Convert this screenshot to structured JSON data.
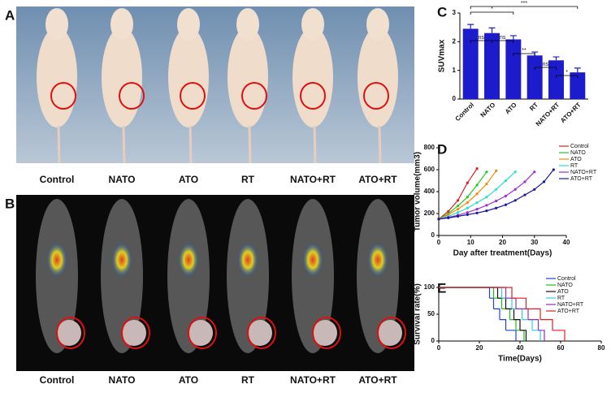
{
  "figure": {
    "panel_labels": [
      "A",
      "B",
      "C",
      "D",
      "E"
    ],
    "groups": [
      "Control",
      "NATO",
      "ATO",
      "RT",
      "NATO+RT",
      "ATO+RT"
    ]
  },
  "chart_data": [
    {
      "type": "bar",
      "ylabel": "SUVmax",
      "categories": [
        "Control",
        "NATO",
        "ATO",
        "RT",
        "NATO+RT",
        "ATO+RT"
      ],
      "values": [
        2.45,
        2.3,
        2.08,
        1.52,
        1.35,
        0.93
      ],
      "errors": [
        0.15,
        0.18,
        0.13,
        0.12,
        0.12,
        0.15
      ],
      "color": "#1c1ccc",
      "annotations": [
        "***",
        "*",
        "ns",
        "ns",
        "**",
        "ns",
        "*"
      ],
      "ylim": [
        0,
        3
      ],
      "yticks": [
        0,
        1,
        2,
        3
      ]
    },
    {
      "type": "line",
      "ylabel": "Tumor volume(mm3)",
      "xlabel": "Day after treatment(Days)",
      "series": [
        {
          "name": "Control",
          "color": "#e02020",
          "x": [
            0,
            3,
            6,
            9,
            12
          ],
          "values": [
            150,
            220,
            320,
            480,
            610
          ]
        },
        {
          "name": "NATO",
          "color": "#22cc22",
          "x": [
            0,
            3,
            6,
            9,
            12,
            15
          ],
          "values": [
            150,
            200,
            270,
            350,
            460,
            580
          ]
        },
        {
          "name": "ATO",
          "color": "#f08c10",
          "x": [
            0,
            3,
            6,
            9,
            12,
            15,
            18
          ],
          "values": [
            150,
            190,
            240,
            300,
            380,
            470,
            590
          ]
        },
        {
          "name": "RT",
          "color": "#30dcd0",
          "x": [
            0,
            3,
            6,
            9,
            12,
            15,
            18,
            21,
            24
          ],
          "values": [
            150,
            175,
            210,
            250,
            300,
            350,
            420,
            500,
            580
          ]
        },
        {
          "name": "NATO+RT",
          "color": "#a030d0",
          "x": [
            0,
            3,
            6,
            9,
            12,
            15,
            18,
            21,
            24,
            27,
            30
          ],
          "values": [
            150,
            165,
            185,
            210,
            240,
            275,
            315,
            360,
            420,
            490,
            580
          ]
        },
        {
          "name": "ATO+RT",
          "color": "#1a1a9a",
          "x": [
            0,
            3,
            6,
            9,
            12,
            15,
            18,
            21,
            24,
            27,
            30,
            33,
            36
          ],
          "values": [
            150,
            160,
            175,
            190,
            205,
            225,
            250,
            280,
            320,
            370,
            420,
            490,
            600
          ]
        }
      ],
      "xlim": [
        0,
        40
      ],
      "xticks": [
        0,
        10,
        20,
        30,
        40
      ],
      "ylim": [
        0,
        800
      ],
      "yticks": [
        0,
        200,
        400,
        600,
        800
      ]
    },
    {
      "type": "step",
      "ylabel": "Survival rate(%)",
      "xlabel": "Time(Days)",
      "series": [
        {
          "name": "Control",
          "color": "#2040e0",
          "x": [
            0,
            25,
            27,
            30,
            33,
            38
          ],
          "values": [
            100,
            80,
            60,
            40,
            20,
            0
          ]
        },
        {
          "name": "NATO",
          "color": "#22bb22",
          "x": [
            0,
            27,
            31,
            35,
            38,
            42
          ],
          "values": [
            100,
            80,
            60,
            40,
            20,
            0
          ]
        },
        {
          "name": "ATO",
          "color": "#111111",
          "x": [
            0,
            29,
            33,
            37,
            40,
            43
          ],
          "values": [
            100,
            80,
            60,
            40,
            20,
            0
          ]
        },
        {
          "name": "RT",
          "color": "#30d0e0",
          "x": [
            0,
            31,
            36,
            41,
            46,
            50
          ],
          "values": [
            100,
            80,
            60,
            40,
            20,
            0
          ]
        },
        {
          "name": "NATO+RT",
          "color": "#9030c0",
          "x": [
            0,
            33,
            38,
            44,
            49,
            52
          ],
          "values": [
            100,
            80,
            60,
            40,
            20,
            0
          ]
        },
        {
          "name": "ATO+RT",
          "color": "#e02020",
          "x": [
            0,
            36,
            43,
            50,
            56,
            62
          ],
          "values": [
            100,
            80,
            60,
            40,
            20,
            0
          ]
        }
      ],
      "xlim": [
        0,
        80
      ],
      "xticks": [
        0,
        20,
        40,
        60,
        80
      ],
      "ylim": [
        0,
        100
      ],
      "yticks": [
        0,
        50,
        100
      ]
    }
  ]
}
